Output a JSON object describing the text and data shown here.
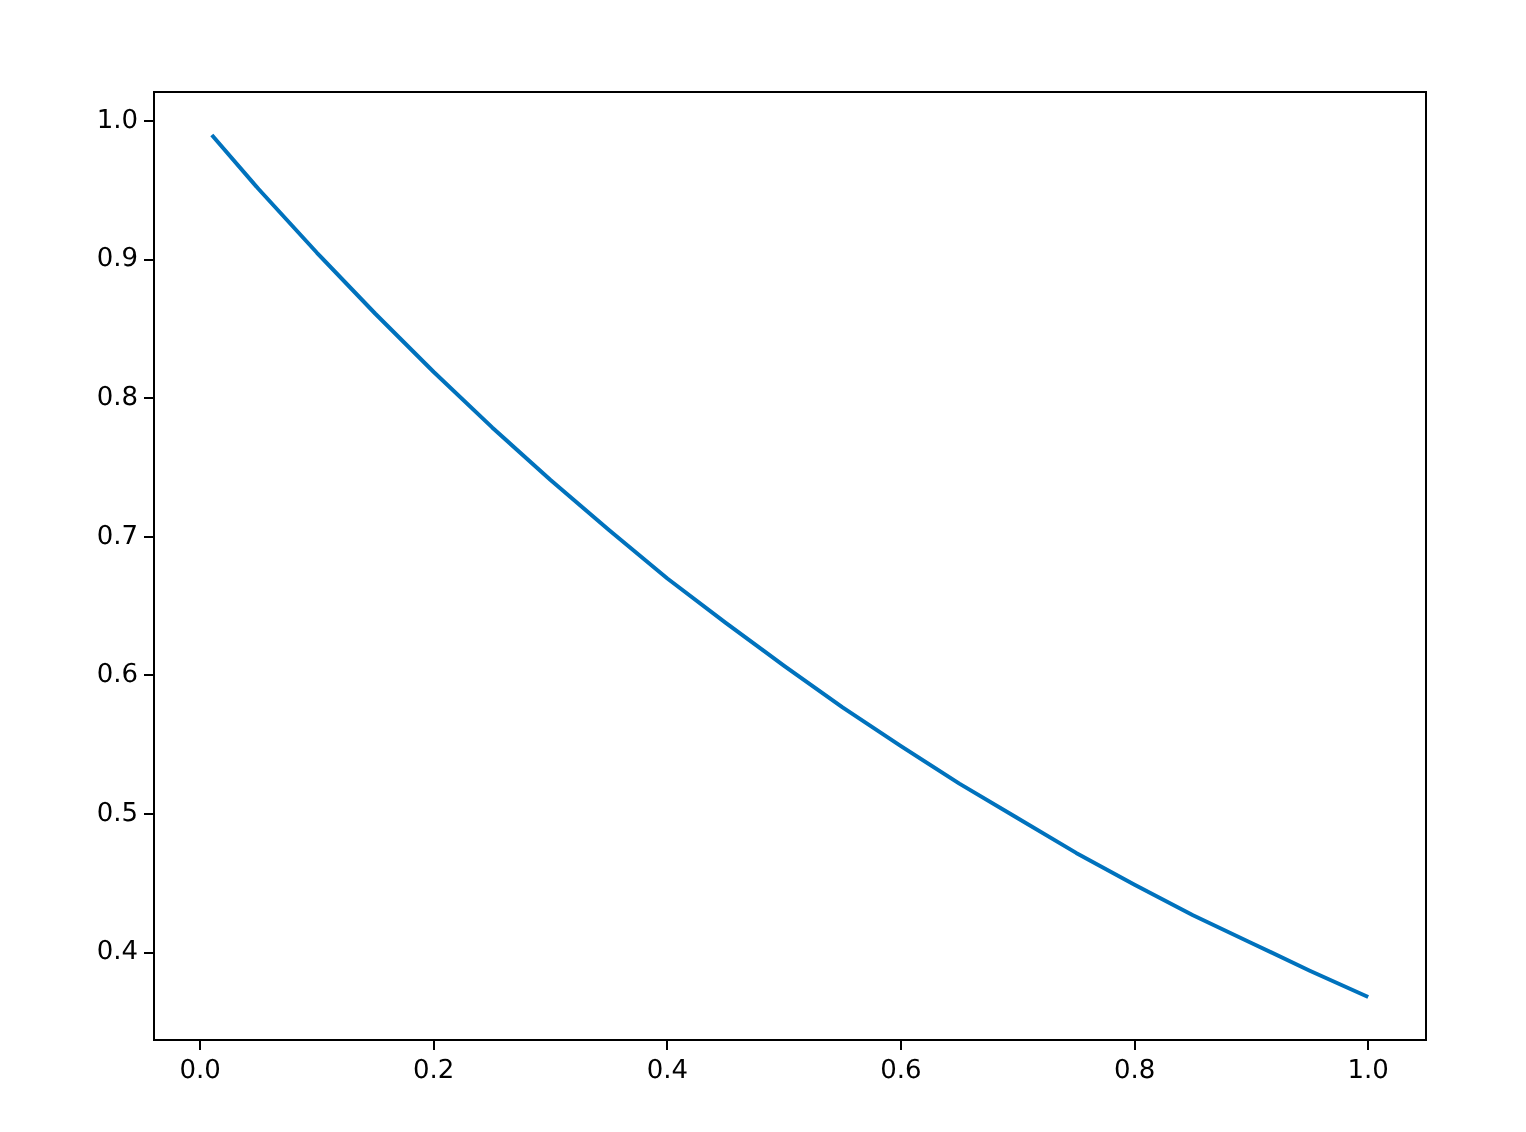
{
  "chart_data": {
    "type": "line",
    "x": [
      0.01,
      0.05,
      0.1,
      0.15,
      0.2,
      0.25,
      0.3,
      0.35,
      0.4,
      0.45,
      0.5,
      0.55,
      0.6,
      0.65,
      0.7,
      0.75,
      0.8,
      0.85,
      0.9,
      0.95,
      1.0
    ],
    "series": [
      {
        "color": "#0072bd",
        "values": [
          0.99,
          0.951,
          0.905,
          0.861,
          0.819,
          0.779,
          0.741,
          0.705,
          0.67,
          0.638,
          0.607,
          0.577,
          0.549,
          0.522,
          0.497,
          0.472,
          0.449,
          0.427,
          0.407,
          0.387,
          0.368
        ]
      }
    ],
    "xlim": [
      -0.0395,
      1.0495
    ],
    "xticks": [
      {
        "value": 0,
        "label": "0.0"
      },
      0.2,
      0.4,
      0.6,
      0.8,
      {
        "value": 1,
        "label": "1.0"
      }
    ],
    "ylim": [
      0.337,
      1.021
    ],
    "yticks": [
      0.4,
      0.5,
      0.6,
      0.7,
      0.8,
      0.9,
      {
        "value": 1,
        "label": "1.0"
      }
    ],
    "grid": false,
    "legend": false,
    "marker": "none",
    "line_style": "solid"
  }
}
